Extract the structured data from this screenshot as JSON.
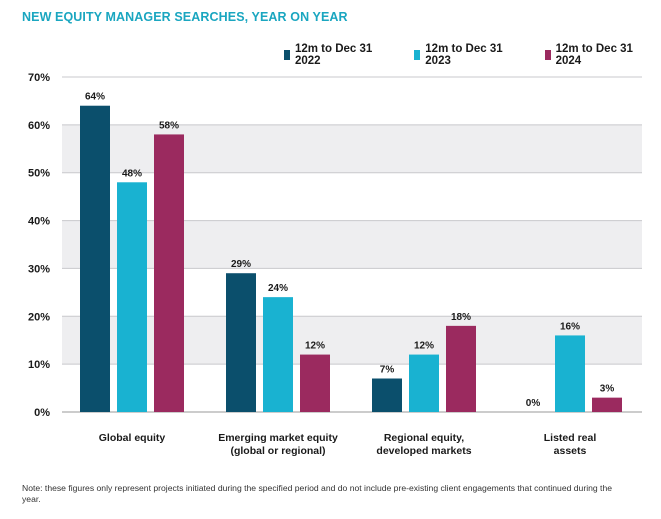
{
  "chart_data": {
    "type": "bar",
    "title": "NEW EQUITY MANAGER SEARCHES, YEAR ON YEAR",
    "categories": [
      [
        "Global equity"
      ],
      [
        "Emerging market equity",
        "(global or regional)"
      ],
      [
        "Regional equity,",
        "developed markets"
      ],
      [
        "Listed real",
        "assets"
      ]
    ],
    "series": [
      {
        "name": "12m to Dec 31 2022",
        "color": "#0b4f6c",
        "values": [
          64,
          29,
          7,
          0
        ],
        "labels": [
          "64%",
          "29%",
          "7%",
          "0%"
        ]
      },
      {
        "name": "12m to Dec 31 2023",
        "color": "#19b2d1",
        "values": [
          48,
          24,
          12,
          16
        ],
        "labels": [
          "48%",
          "24%",
          "12%",
          "16%"
        ]
      },
      {
        "name": "12m to Dec 31 2024",
        "color": "#9b2a5f",
        "values": [
          58,
          12,
          18,
          3
        ],
        "labels": [
          "58%",
          "12%",
          "18%",
          "3%"
        ]
      }
    ],
    "yticks": [
      "0%",
      "10%",
      "20%",
      "30%",
      "40%",
      "50%",
      "60%",
      "70%"
    ],
    "ylim": [
      0,
      70
    ],
    "grid": true,
    "legend_position": "top-right"
  },
  "note": "Note: these figures only represent projects initiated during the specified period and do not include pre-existing client engagements that continued during the year."
}
